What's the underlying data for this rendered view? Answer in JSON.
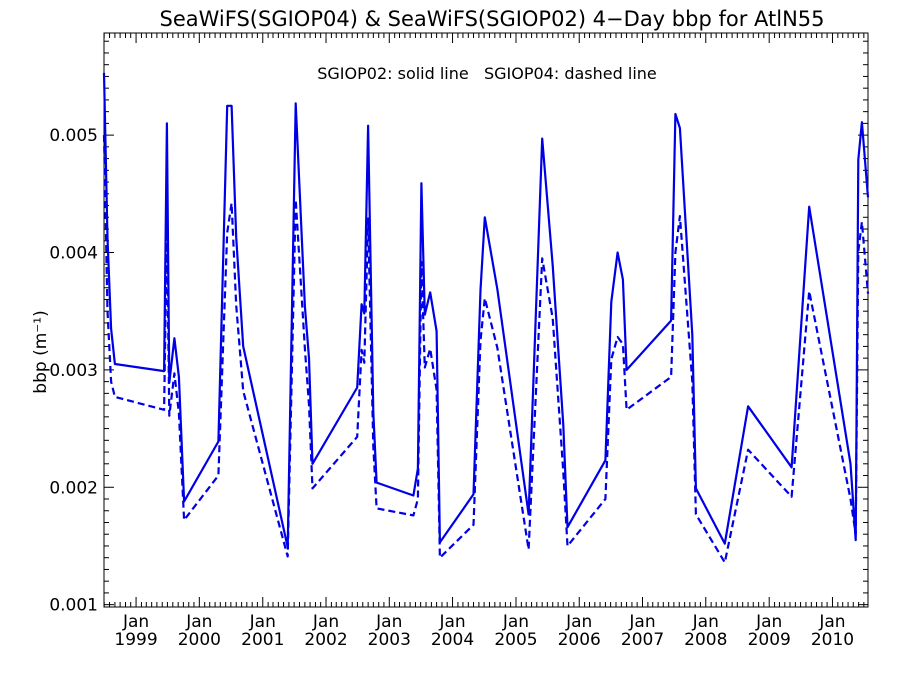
{
  "chart_data": {
    "type": "line",
    "title": "SeaWiFS(SGIOP04) & SeaWiFS(SGIOP02) 4−Day bbp for AtlN55",
    "annotation": "SGIOP02: solid line   SGIOP04: dashed line",
    "ylabel": "bbp (m⁻¹)",
    "xlabel": "",
    "ylim": [
      0.00098,
      0.00587
    ],
    "xlim": [
      "1998-06-30",
      "2010-07-25"
    ],
    "grid": false,
    "y_ticks": [
      {
        "value": 0.001,
        "label": "0.001"
      },
      {
        "value": 0.002,
        "label": "0.002"
      },
      {
        "value": 0.003,
        "label": "0.003"
      },
      {
        "value": 0.004,
        "label": "0.004"
      },
      {
        "value": 0.005,
        "label": "0.005"
      }
    ],
    "x_ticks": [
      {
        "date": "1999-01-01",
        "month": "Jan",
        "year": "1999"
      },
      {
        "date": "2000-01-01",
        "month": "Jan",
        "year": "2000"
      },
      {
        "date": "2001-01-01",
        "month": "Jan",
        "year": "2001"
      },
      {
        "date": "2002-01-01",
        "month": "Jan",
        "year": "2002"
      },
      {
        "date": "2003-01-01",
        "month": "Jan",
        "year": "2003"
      },
      {
        "date": "2004-01-01",
        "month": "Jan",
        "year": "2004"
      },
      {
        "date": "2005-01-01",
        "month": "Jan",
        "year": "2005"
      },
      {
        "date": "2006-01-01",
        "month": "Jan",
        "year": "2006"
      },
      {
        "date": "2007-01-01",
        "month": "Jan",
        "year": "2007"
      },
      {
        "date": "2008-01-01",
        "month": "Jan",
        "year": "2008"
      },
      {
        "date": "2009-01-01",
        "month": "Jan",
        "year": "2009"
      },
      {
        "date": "2010-01-01",
        "month": "Jan",
        "year": "2010"
      }
    ],
    "series": [
      {
        "name": "SGIOP02",
        "style": "solid",
        "color": "#0000e6",
        "points": [
          [
            "1998-06-30",
            0.00553
          ],
          [
            "1998-07-20",
            0.00412
          ],
          [
            "1998-08-10",
            0.00335
          ],
          [
            "1998-09-01",
            0.00305
          ],
          [
            "1999-06-12",
            0.00299
          ],
          [
            "1999-06-28",
            0.0051
          ],
          [
            "1999-07-12",
            0.00289
          ],
          [
            "1999-08-10",
            0.00327
          ],
          [
            "1999-09-05",
            0.00294
          ],
          [
            "1999-10-05",
            0.00188
          ],
          [
            "2000-04-20",
            0.00239
          ],
          [
            "2000-06-10",
            0.00525
          ],
          [
            "2000-07-05",
            0.00525
          ],
          [
            "2000-08-01",
            0.00413
          ],
          [
            "2000-09-10",
            0.0032
          ],
          [
            "2001-05-25",
            0.00149
          ],
          [
            "2001-07-10",
            0.00527
          ],
          [
            "2001-09-01",
            0.00354
          ],
          [
            "2001-09-25",
            0.0031
          ],
          [
            "2001-10-15",
            0.0022
          ],
          [
            "2002-06-30",
            0.00285
          ],
          [
            "2002-07-25",
            0.00356
          ],
          [
            "2002-08-10",
            0.00348
          ],
          [
            "2002-09-01",
            0.00508
          ],
          [
            "2002-10-01",
            0.00264
          ],
          [
            "2002-10-20",
            0.00204
          ],
          [
            "2003-05-20",
            0.00193
          ],
          [
            "2003-06-15",
            0.00216
          ],
          [
            "2003-07-05",
            0.00459
          ],
          [
            "2003-07-25",
            0.00347
          ],
          [
            "2003-08-25",
            0.00366
          ],
          [
            "2003-10-01",
            0.00333
          ],
          [
            "2003-10-20",
            0.00153
          ],
          [
            "2004-05-01",
            0.00194
          ],
          [
            "2004-06-10",
            0.00368
          ],
          [
            "2004-07-05",
            0.0043
          ],
          [
            "2004-09-15",
            0.00369
          ],
          [
            "2005-03-15",
            0.00177
          ],
          [
            "2005-06-01",
            0.00497
          ],
          [
            "2005-08-01",
            0.00389
          ],
          [
            "2005-10-01",
            0.00253
          ],
          [
            "2005-10-25",
            0.00166
          ],
          [
            "2006-06-01",
            0.00223
          ],
          [
            "2006-07-05",
            0.00358
          ],
          [
            "2006-08-10",
            0.004
          ],
          [
            "2006-09-10",
            0.00377
          ],
          [
            "2006-10-01",
            0.003
          ],
          [
            "2007-06-15",
            0.00342
          ],
          [
            "2007-07-10",
            0.00518
          ],
          [
            "2007-08-05",
            0.00506
          ],
          [
            "2007-10-15",
            0.0033
          ],
          [
            "2007-11-05",
            0.00199
          ],
          [
            "2008-04-20",
            0.00152
          ],
          [
            "2008-09-01",
            0.00269
          ],
          [
            "2009-05-10",
            0.00217
          ],
          [
            "2009-08-20",
            0.00439
          ],
          [
            "2010-04-15",
            0.0022
          ],
          [
            "2010-05-15",
            0.00155
          ],
          [
            "2010-05-30",
            0.00479
          ],
          [
            "2010-06-20",
            0.00511
          ],
          [
            "2010-07-25",
            0.00447
          ]
        ]
      },
      {
        "name": "SGIOP04",
        "style": "dashed",
        "color": "#0000e6",
        "points": [
          [
            "1998-06-30",
            0.005
          ],
          [
            "1998-07-20",
            0.0035
          ],
          [
            "1998-08-10",
            0.0029
          ],
          [
            "1998-09-01",
            0.00277
          ],
          [
            "1999-06-12",
            0.00266
          ],
          [
            "1999-06-28",
            0.00423
          ],
          [
            "1999-07-12",
            0.00261
          ],
          [
            "1999-08-10",
            0.00297
          ],
          [
            "1999-09-05",
            0.00263
          ],
          [
            "1999-10-05",
            0.00172
          ],
          [
            "2000-04-20",
            0.0021
          ],
          [
            "2000-06-10",
            0.00417
          ],
          [
            "2000-07-05",
            0.00442
          ],
          [
            "2000-08-01",
            0.00355
          ],
          [
            "2000-09-10",
            0.00282
          ],
          [
            "2001-05-25",
            0.00141
          ],
          [
            "2001-07-10",
            0.00445
          ],
          [
            "2001-09-01",
            0.00318
          ],
          [
            "2001-09-25",
            0.0027
          ],
          [
            "2001-10-15",
            0.00199
          ],
          [
            "2002-06-30",
            0.00243
          ],
          [
            "2002-07-25",
            0.00317
          ],
          [
            "2002-08-10",
            0.00306
          ],
          [
            "2002-09-01",
            0.00429
          ],
          [
            "2002-10-01",
            0.00235
          ],
          [
            "2002-10-20",
            0.00182
          ],
          [
            "2003-05-20",
            0.00176
          ],
          [
            "2003-06-15",
            0.0019
          ],
          [
            "2003-07-05",
            0.00392
          ],
          [
            "2003-07-25",
            0.00302
          ],
          [
            "2003-08-25",
            0.00318
          ],
          [
            "2003-10-01",
            0.00283
          ],
          [
            "2003-10-20",
            0.0014
          ],
          [
            "2004-05-01",
            0.00168
          ],
          [
            "2004-06-10",
            0.00325
          ],
          [
            "2004-07-05",
            0.00361
          ],
          [
            "2004-09-15",
            0.00319
          ],
          [
            "2005-03-15",
            0.00147
          ],
          [
            "2005-06-01",
            0.00395
          ],
          [
            "2005-08-01",
            0.00344
          ],
          [
            "2005-10-01",
            0.00213
          ],
          [
            "2005-10-25",
            0.0015
          ],
          [
            "2006-06-01",
            0.0019
          ],
          [
            "2006-07-05",
            0.00309
          ],
          [
            "2006-08-10",
            0.00328
          ],
          [
            "2006-09-10",
            0.00322
          ],
          [
            "2006-10-01",
            0.00266
          ],
          [
            "2007-06-15",
            0.00294
          ],
          [
            "2007-07-10",
            0.004
          ],
          [
            "2007-08-05",
            0.00431
          ],
          [
            "2007-10-15",
            0.0029
          ],
          [
            "2007-11-05",
            0.00177
          ],
          [
            "2008-04-20",
            0.00136
          ],
          [
            "2008-09-01",
            0.00232
          ],
          [
            "2009-05-10",
            0.00192
          ],
          [
            "2009-08-20",
            0.00367
          ],
          [
            "2010-04-15",
            0.0019
          ],
          [
            "2010-05-15",
            0.0016
          ],
          [
            "2010-05-30",
            0.00401
          ],
          [
            "2010-06-20",
            0.00426
          ],
          [
            "2010-07-25",
            0.00365
          ]
        ]
      }
    ]
  }
}
